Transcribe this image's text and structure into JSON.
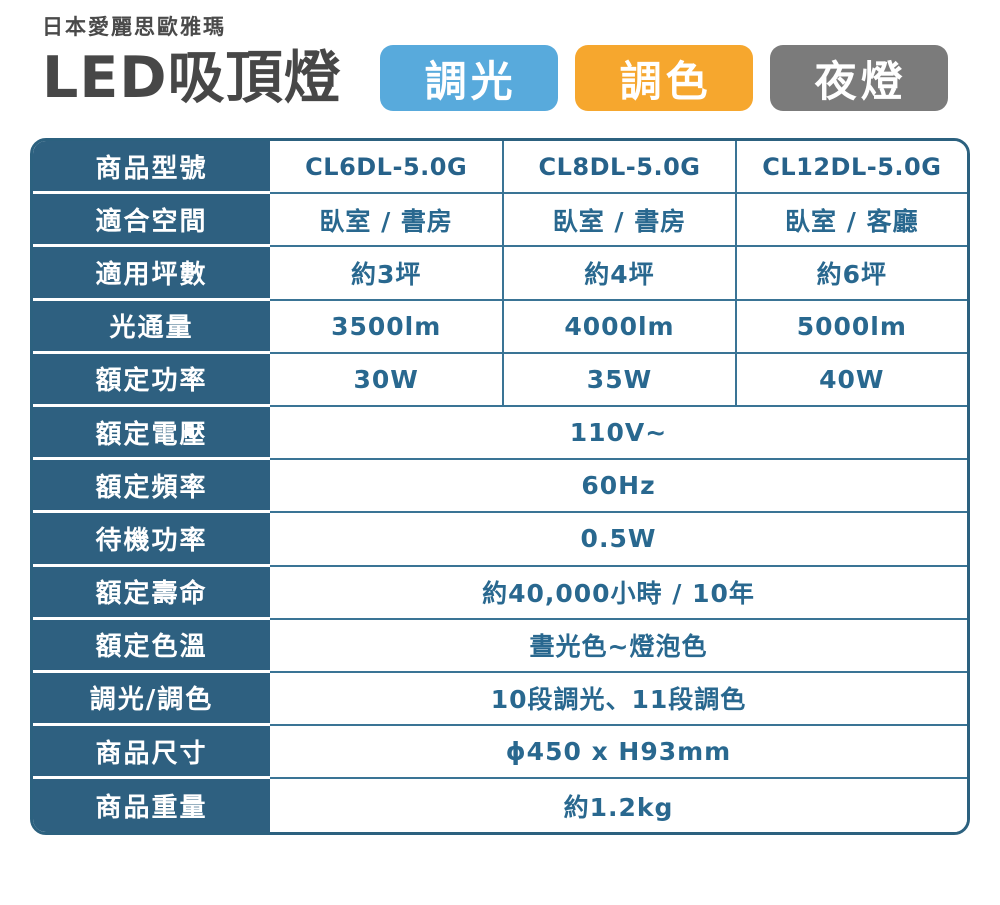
{
  "header": {
    "brand": "日本愛麗思歐雅瑪",
    "title": "LED吸頂燈",
    "badges": [
      {
        "label": "調光",
        "color": "#58aadc"
      },
      {
        "label": "調色",
        "color": "#f6a72e"
      },
      {
        "label": "夜燈",
        "color": "#7b7b7b"
      }
    ]
  },
  "colors": {
    "table_header_bg": "#2e6080",
    "table_border": "#2c617f",
    "table_grid_line": "#3a7495",
    "value_text": "#29688f",
    "title_text": "#474747"
  },
  "table": {
    "rows": [
      {
        "label": "商品型號",
        "values": [
          "CL6DL-5.0G",
          "CL8DL-5.0G",
          "CL12DL-5.0G"
        ]
      },
      {
        "label": "適合空間",
        "values": [
          "臥室 / 書房",
          "臥室 / 書房",
          "臥室 / 客廳"
        ]
      },
      {
        "label": "適用坪數",
        "values": [
          "約3坪",
          "約4坪",
          "約6坪"
        ]
      },
      {
        "label": "光通量",
        "values": [
          "3500lm",
          "4000lm",
          "5000lm"
        ]
      },
      {
        "label": "額定功率",
        "values": [
          "30W",
          "35W",
          "40W"
        ]
      },
      {
        "label": "額定電壓",
        "span": "110V~"
      },
      {
        "label": "額定頻率",
        "span": "60Hz"
      },
      {
        "label": "待機功率",
        "span": "0.5W"
      },
      {
        "label": "額定壽命",
        "span": "約40,000小時 / 10年"
      },
      {
        "label": "額定色溫",
        "span": "晝光色~燈泡色"
      },
      {
        "label": "調光/調色",
        "span": "10段調光、11段調色"
      },
      {
        "label": "商品尺寸",
        "span": "ϕ450 x H93mm"
      },
      {
        "label": "商品重量",
        "span": "約1.2kg"
      }
    ]
  }
}
